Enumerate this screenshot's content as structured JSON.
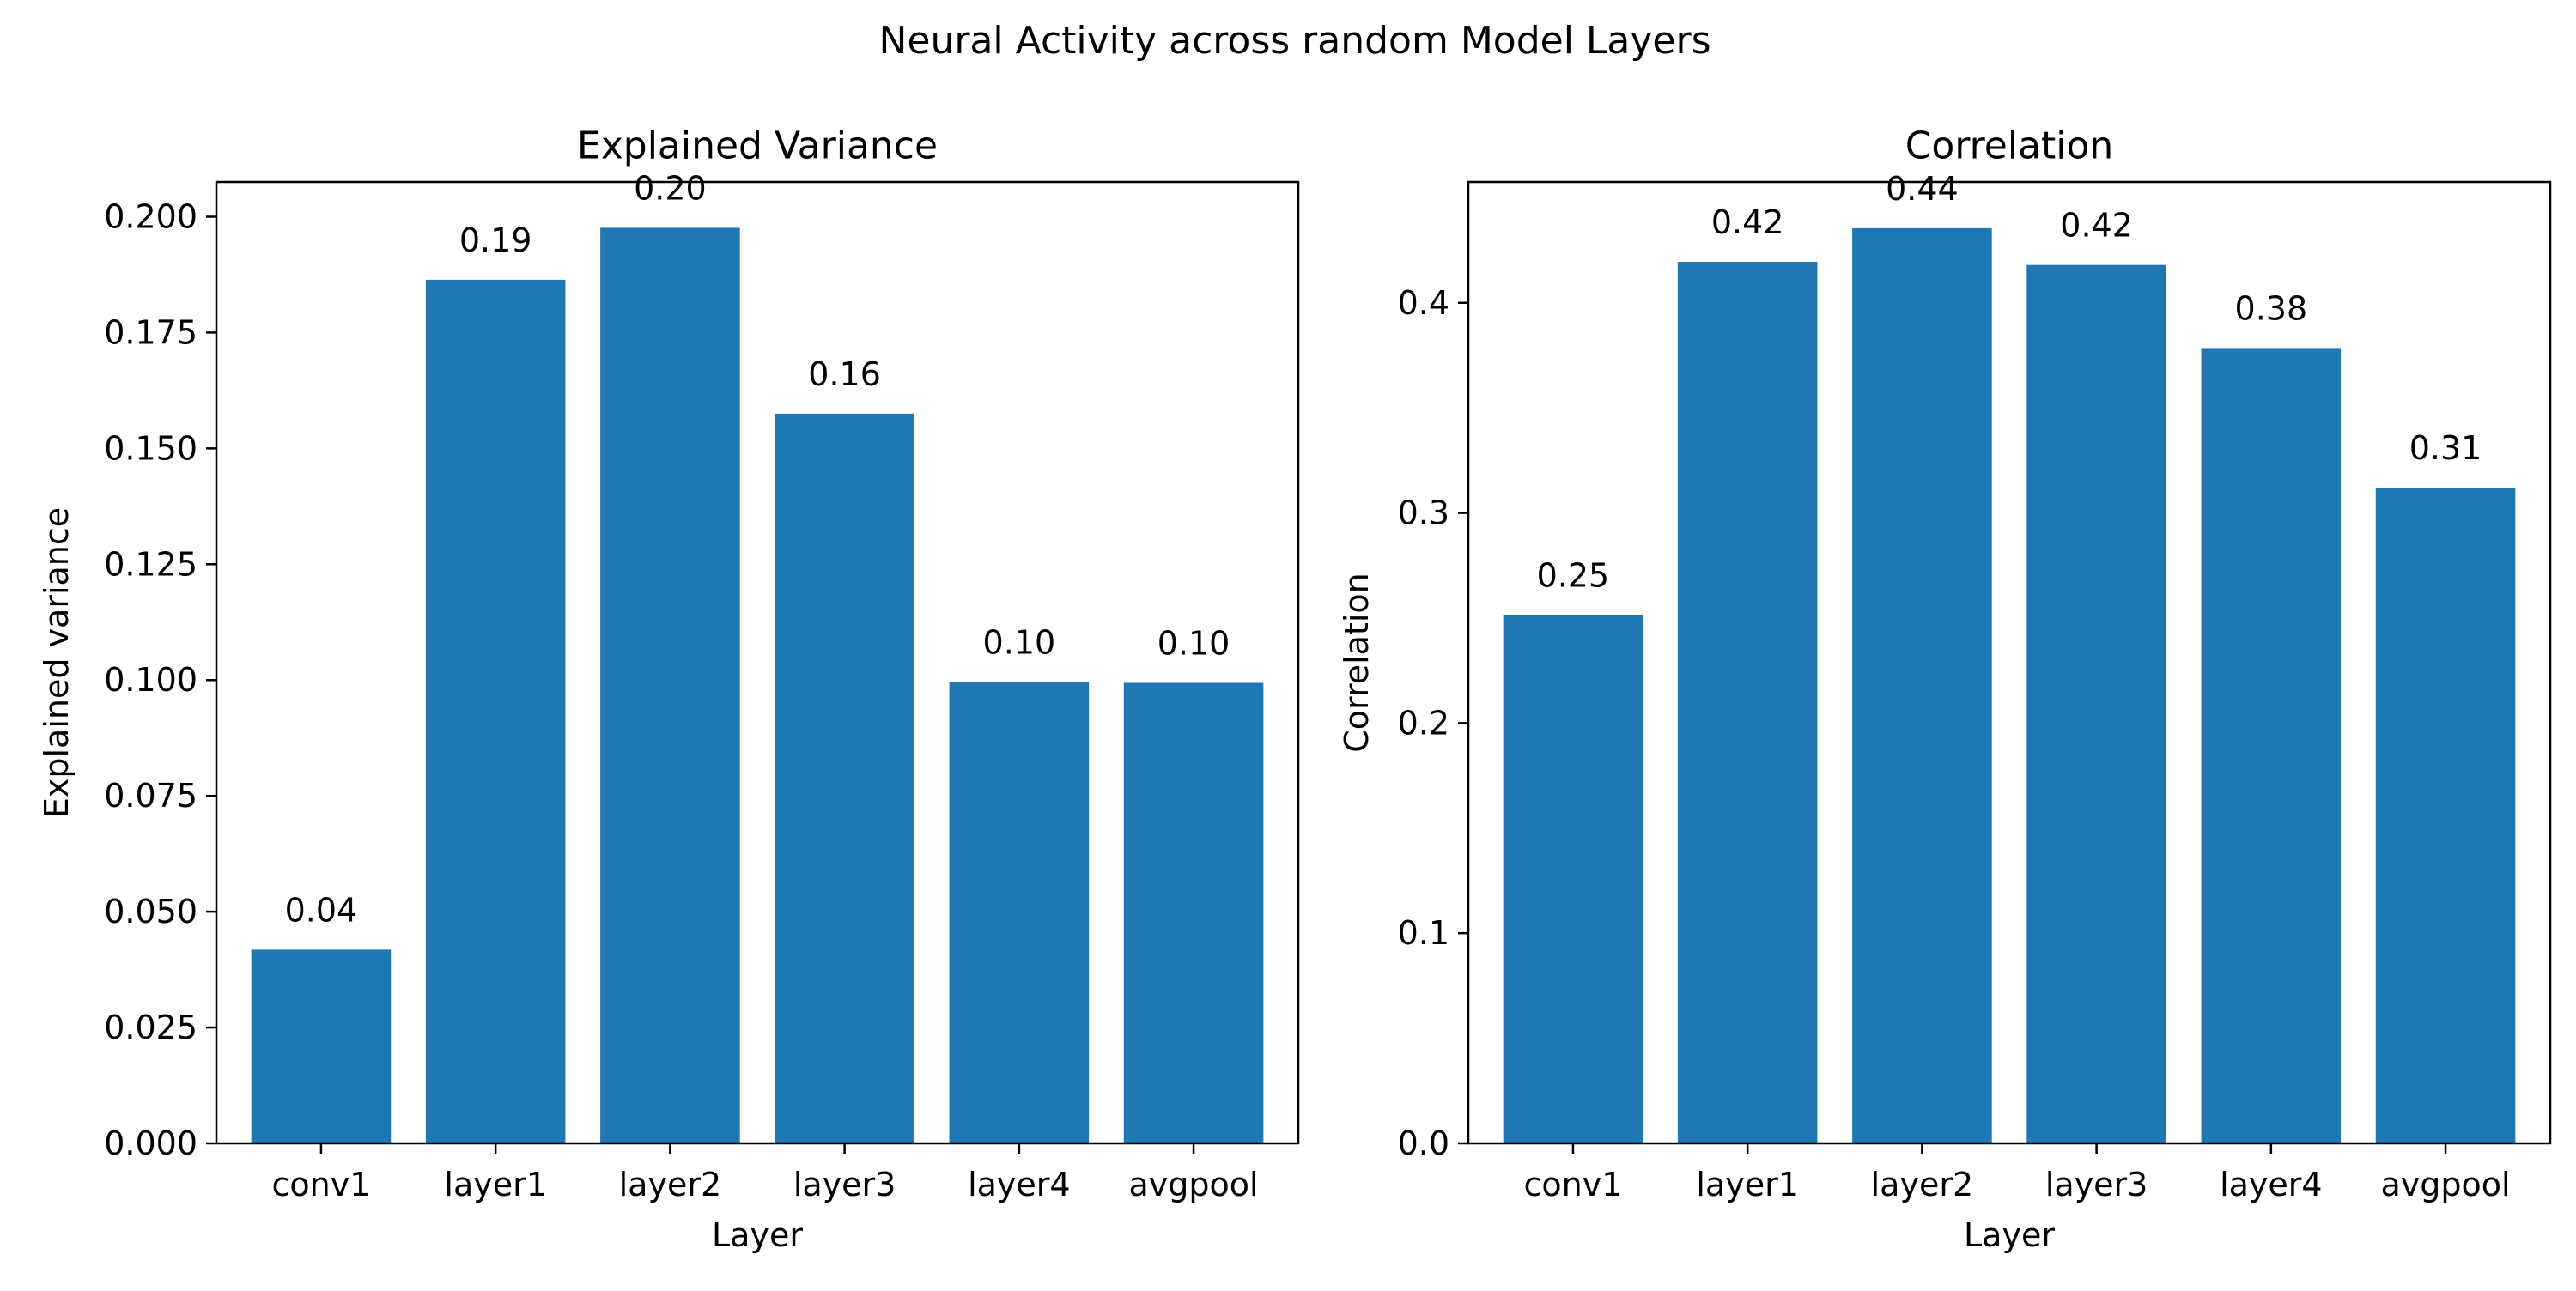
{
  "figure": {
    "title": "Neural Activity across random Model Layers"
  },
  "chart_data": [
    {
      "type": "bar",
      "title": "Explained Variance",
      "xlabel": "Layer",
      "ylabel": "Explained variance",
      "categories": [
        "conv1",
        "layer1",
        "layer2",
        "layer3",
        "layer4",
        "avgpool"
      ],
      "values": [
        0.0418,
        0.1864,
        0.1976,
        0.1575,
        0.0996,
        0.0994
      ],
      "value_labels": [
        "0.04",
        "0.19",
        "0.20",
        "0.16",
        "0.10",
        "0.10"
      ],
      "ylim": [
        0,
        0.2075
      ],
      "yticks": [
        0.0,
        0.025,
        0.05,
        0.075,
        0.1,
        0.125,
        0.15,
        0.175,
        0.2
      ],
      "ytick_labels": [
        "0.000",
        "0.025",
        "0.050",
        "0.075",
        "0.100",
        "0.125",
        "0.150",
        "0.175",
        "0.200"
      ],
      "bar_color": "#1f77b4",
      "grid": false
    },
    {
      "type": "bar",
      "title": "Correlation",
      "xlabel": "Layer",
      "ylabel": "Correlation",
      "categories": [
        "conv1",
        "layer1",
        "layer2",
        "layer3",
        "layer4",
        "avgpool"
      ],
      "values": [
        0.2515,
        0.4195,
        0.4355,
        0.418,
        0.3785,
        0.312
      ],
      "value_labels": [
        "0.25",
        "0.42",
        "0.44",
        "0.42",
        "0.38",
        "0.31"
      ],
      "ylim": [
        0,
        0.4575
      ],
      "yticks": [
        0.0,
        0.1,
        0.2,
        0.3,
        0.4
      ],
      "ytick_labels": [
        "0.0",
        "0.1",
        "0.2",
        "0.3",
        "0.4"
      ],
      "bar_color": "#1f77b4",
      "grid": false
    }
  ]
}
